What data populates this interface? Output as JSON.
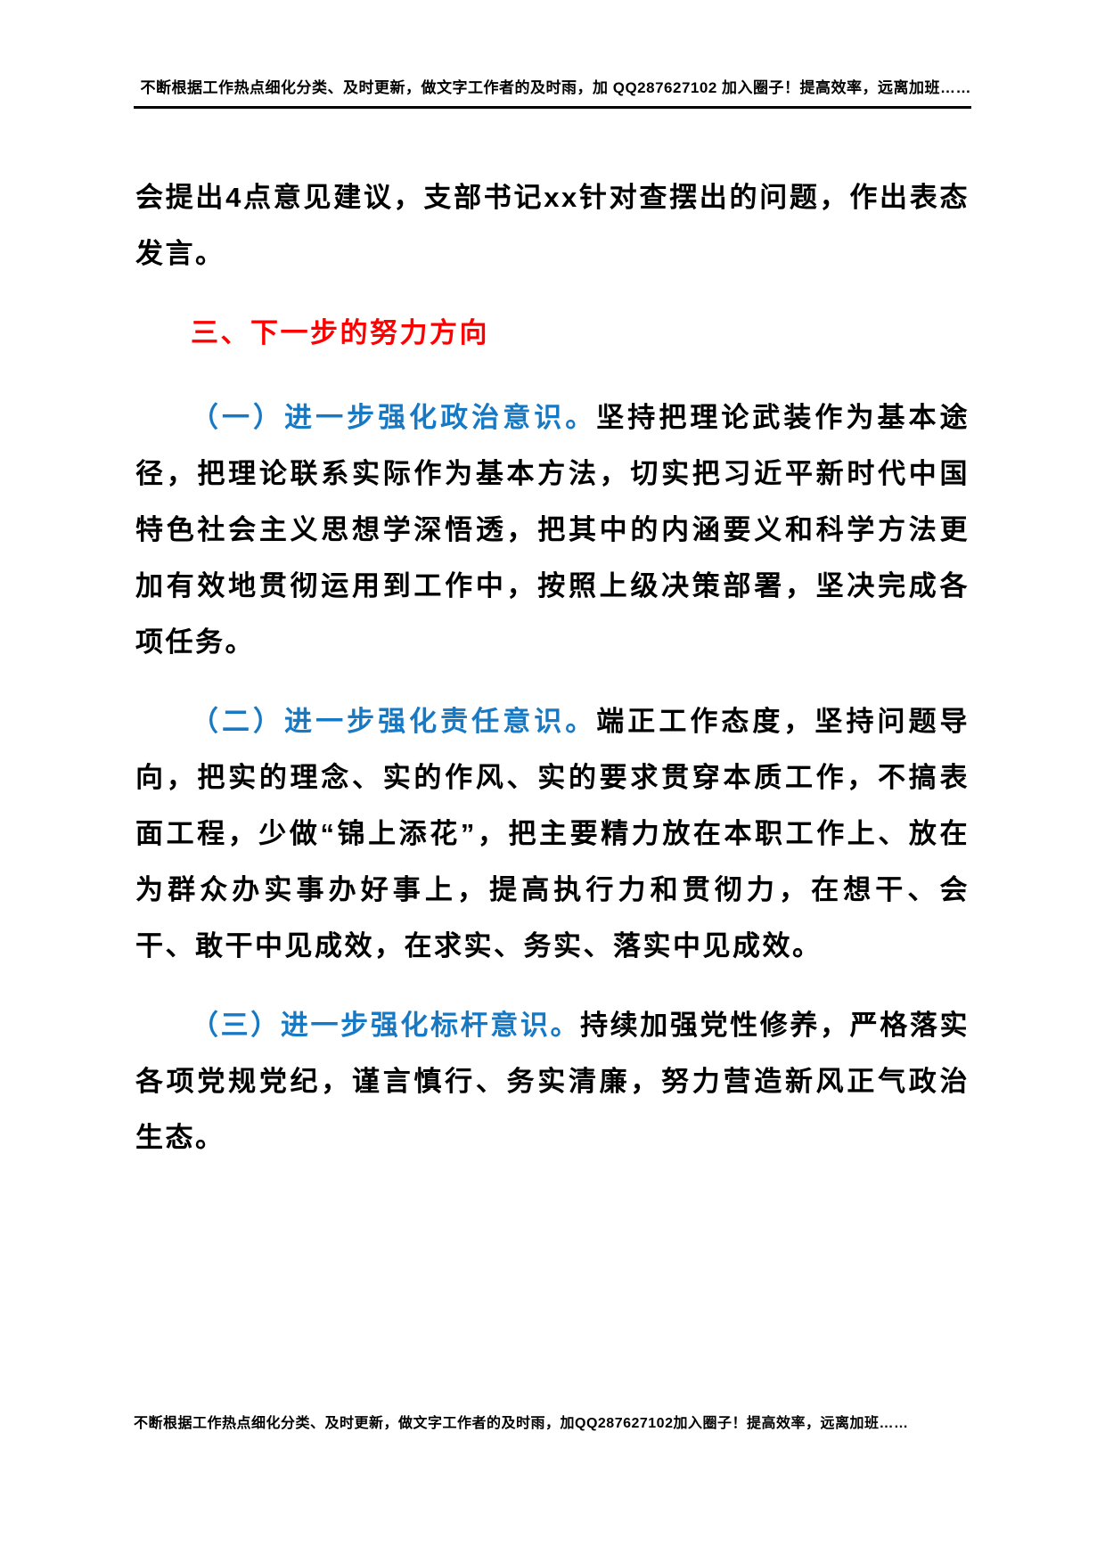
{
  "document": {
    "header": {
      "text": "不断根据工作热点细化分类、及时更新，做文字工作者的及时雨，加 QQ287627102 加入圈子！提高效率，远离加班……"
    },
    "body": {
      "intro": "会提出4点意见建议，支部书记xx针对查摆出的问题，作出表态发言。",
      "heading": "三、下一步的努力方向",
      "sections": [
        {
          "lead": "（一）进一步强化政治意识。",
          "text": "坚持把理论武装作为基本途径，把理论联系实际作为基本方法，切实把习近平新时代中国特色社会主义思想学深悟透，把其中的内涵要义和科学方法更加有效地贯彻运用到工作中，按照上级决策部署，坚决完成各项任务。"
        },
        {
          "lead": "（二）进一步强化责任意识。",
          "text": "端正工作态度，坚持问题导向，把实的理念、实的作风、实的要求贯穿本质工作，不搞表面工程，少做“锦上添花”，把主要精力放在本职工作上、放在为群众办实事办好事上，提高执行力和贯彻力，在想干、会干、敢干中见成效，在求实、务实、落实中见成效。"
        },
        {
          "lead": "（三）进一步强化标杆意识。",
          "text": "持续加强党性修养，严格落实各项党规党纪，谨言慎行、务实清廉，努力营造新风正气政治生态。"
        }
      ]
    },
    "footer": {
      "text": "不断根据工作热点细化分类、及时更新，做文字工作者的及时雨，加QQ287627102加入圈子！提高效率，远离加班……"
    },
    "colors": {
      "heading_red": "#FF0000",
      "lead_blue": "#1779C4",
      "body_black": "#000000"
    }
  }
}
